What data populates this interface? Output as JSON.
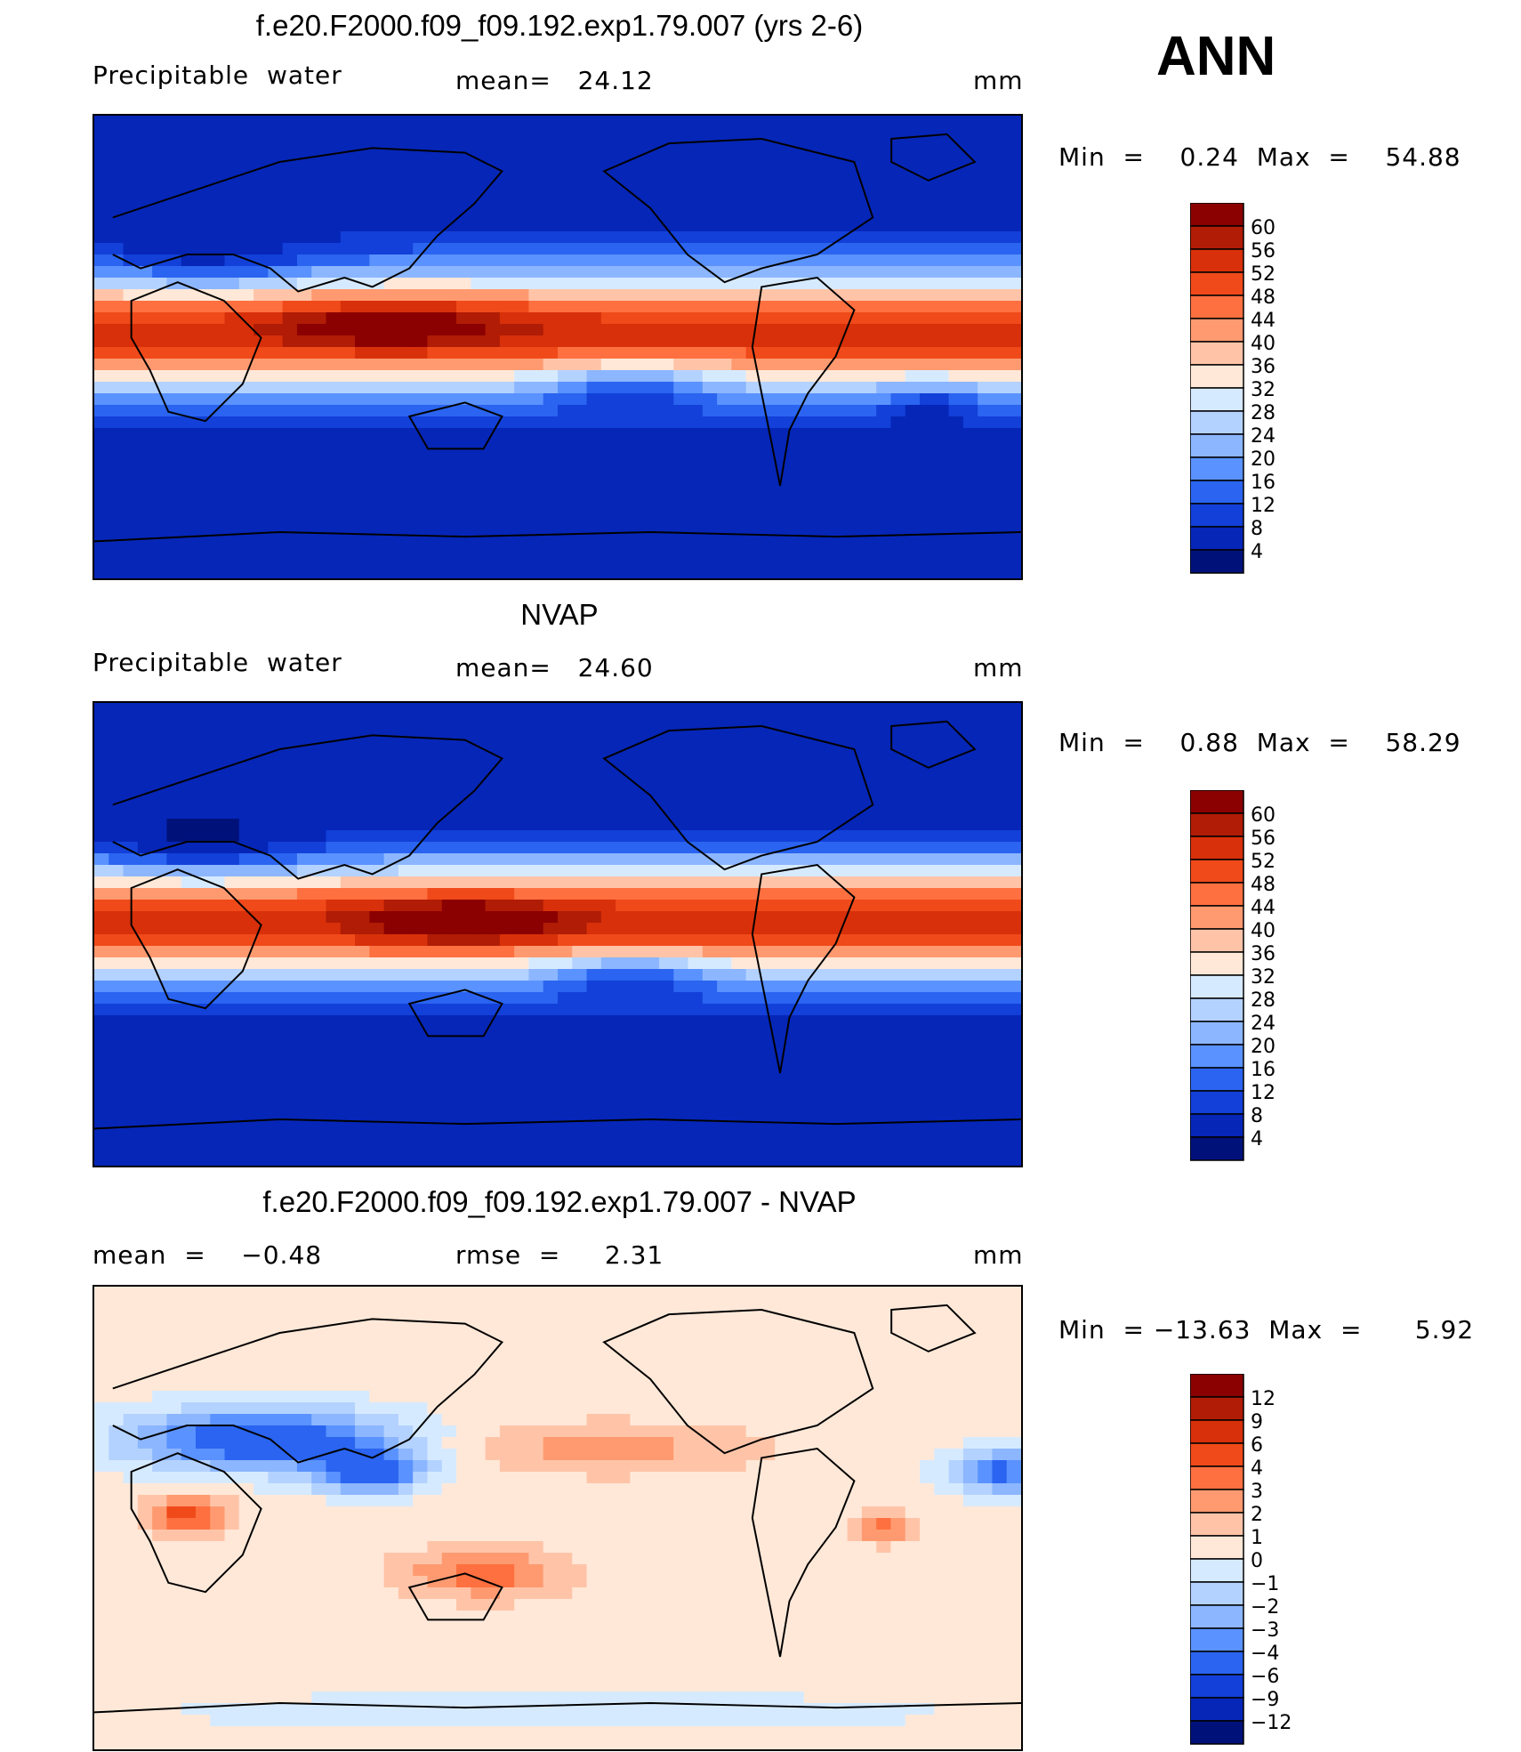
{
  "annotation": "ANN",
  "panels": [
    {
      "title": "f.e20.F2000.f09_f09.192.exp1.79.007 (yrs 2-6)",
      "variable": "Precipitable  water",
      "stat1": "mean=   24.12",
      "stat2": "",
      "units": "mm",
      "minmax": "Min  =    0.24  Max  =    54.88",
      "colorbar": {
        "labels": [
          "60",
          "56",
          "52",
          "48",
          "44",
          "40",
          "36",
          "32",
          "28",
          "24",
          "20",
          "16",
          "12",
          "8",
          "4"
        ],
        "colors": [
          "#8b0000",
          "#b01c05",
          "#d8300a",
          "#f04a1a",
          "#ff7040",
          "#ff9a70",
          "#ffc4a8",
          "#ffe8d8",
          "#d6eaff",
          "#b4d2ff",
          "#8cb6ff",
          "#5a92ff",
          "#2a64f0",
          "#1240d8",
          "#0626b8",
          "#00127a"
        ]
      },
      "field": "model"
    },
    {
      "title": "NVAP",
      "variable": "Precipitable  water",
      "stat1": "mean=   24.60",
      "stat2": "",
      "units": "mm",
      "minmax": "Min  =    0.88  Max  =    58.29",
      "colorbar": {
        "labels": [
          "60",
          "56",
          "52",
          "48",
          "44",
          "40",
          "36",
          "32",
          "28",
          "24",
          "20",
          "16",
          "12",
          "8",
          "4"
        ],
        "colors": [
          "#8b0000",
          "#b01c05",
          "#d8300a",
          "#f04a1a",
          "#ff7040",
          "#ff9a70",
          "#ffc4a8",
          "#ffe8d8",
          "#d6eaff",
          "#b4d2ff",
          "#8cb6ff",
          "#5a92ff",
          "#2a64f0",
          "#1240d8",
          "#0626b8",
          "#00127a"
        ]
      },
      "field": "obs"
    },
    {
      "title": "f.e20.F2000.f09_f09.192.exp1.79.007 - NVAP",
      "variable": "",
      "stat1": "mean  =    −0.48",
      "stat2": "rmse  =     2.31",
      "units": "mm",
      "minmax": "Min  = −13.63  Max  =      5.92",
      "colorbar": {
        "labels": [
          "12",
          "9",
          "6",
          "4",
          "3",
          "2",
          "1",
          "0",
          "−1",
          "−2",
          "−3",
          "−4",
          "−6",
          "−9",
          "−12"
        ],
        "colors": [
          "#8b0000",
          "#b01c05",
          "#d8300a",
          "#f04a1a",
          "#ff7040",
          "#ff9a70",
          "#ffc4a8",
          "#ffe8d8",
          "#d6eaff",
          "#b4d2ff",
          "#8cb6ff",
          "#5a92ff",
          "#2a64f0",
          "#1240d8",
          "#0626b8",
          "#00127a"
        ]
      },
      "field": "diff"
    }
  ]
}
